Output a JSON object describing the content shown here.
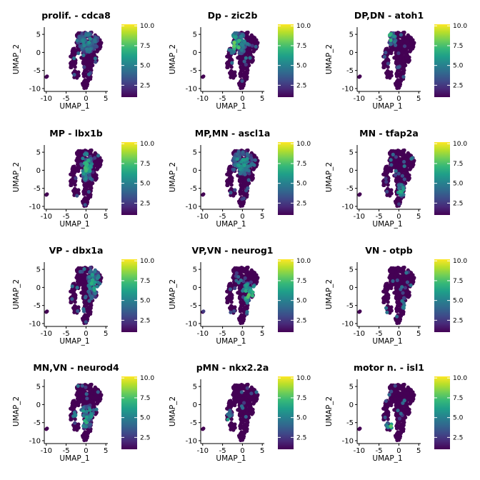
{
  "chart_data": [
    {
      "type": "scatter",
      "title": "prolif. - cdca8",
      "xlabel": "UMAP_1",
      "ylabel": "UMAP_2",
      "xlim": [
        -10.5,
        5.5
      ],
      "ylim": [
        -10.8,
        7
      ],
      "x_ticks": [
        "-10",
        "-5",
        "0",
        "5"
      ],
      "y_ticks": [
        "5",
        "0",
        "-5",
        "-10"
      ],
      "colorbar_ticks": [
        "10.0",
        "7.5",
        "5.0",
        "2.5"
      ],
      "colorbar_range": [
        1,
        10.2
      ],
      "expression_region": {
        "center": [
          0.5,
          3
        ],
        "spread": [
          2.6,
          3.2
        ],
        "level": 0.55
      }
    },
    {
      "type": "scatter",
      "title": "Dp - zic2b",
      "xlabel": "UMAP_1",
      "ylabel": "UMAP_2",
      "xlim": [
        -10.5,
        5.5
      ],
      "ylim": [
        -10.8,
        7
      ],
      "x_ticks": [
        "-10",
        "-5",
        "0",
        "5"
      ],
      "y_ticks": [
        "5",
        "0",
        "-5",
        "-10"
      ],
      "colorbar_ticks": [
        "10.0",
        "7.5",
        "5.0",
        "2.5"
      ],
      "colorbar_range": [
        1,
        10.2
      ],
      "expression_region": {
        "center": [
          -1.5,
          2.5
        ],
        "spread": [
          2.4,
          3.4
        ],
        "level": 0.8
      }
    },
    {
      "type": "scatter",
      "title": "DP,DN - atoh1",
      "xlabel": "UMAP_1",
      "ylabel": "UMAP_2",
      "xlim": [
        -10.5,
        5.5
      ],
      "ylim": [
        -10.8,
        7
      ],
      "x_ticks": [
        "-10",
        "-5",
        "0",
        "5"
      ],
      "y_ticks": [
        "5",
        "0",
        "-5",
        "-10"
      ],
      "colorbar_ticks": [
        "10.0",
        "7.5",
        "5.0",
        "2.5"
      ],
      "colorbar_range": [
        1,
        10.2
      ],
      "expression_region": {
        "center": [
          -2.5,
          4
        ],
        "spread": [
          1.8,
          2.2
        ],
        "level": 0.8
      }
    },
    {
      "type": "scatter",
      "title": "MP - lbx1b",
      "xlabel": "UMAP_1",
      "ylabel": "UMAP_2",
      "xlim": [
        -10.5,
        5.5
      ],
      "ylim": [
        -10.8,
        7
      ],
      "x_ticks": [
        "-10",
        "-5",
        "0",
        "5"
      ],
      "y_ticks": [
        "5",
        "0",
        "-5",
        "-10"
      ],
      "colorbar_ticks": [
        "10.0",
        "7.5",
        "5.0",
        "2.5"
      ],
      "colorbar_range": [
        1,
        10.2
      ],
      "expression_region": {
        "center": [
          0.3,
          1
        ],
        "spread": [
          1.6,
          4
        ],
        "level": 0.75
      }
    },
    {
      "type": "scatter",
      "title": "MP,MN - ascl1a",
      "xlabel": "UMAP_1",
      "ylabel": "UMAP_2",
      "xlim": [
        -10.5,
        5.5
      ],
      "ylim": [
        -10.8,
        7
      ],
      "x_ticks": [
        "-10",
        "-5",
        "0",
        "5"
      ],
      "y_ticks": [
        "5",
        "0",
        "-5",
        "-10"
      ],
      "colorbar_ticks": [
        "10.0",
        "7.5",
        "5.0",
        "2.5"
      ],
      "colorbar_range": [
        1,
        10.2
      ],
      "expression_region": {
        "center": [
          0,
          2
        ],
        "spread": [
          2.8,
          3.5
        ],
        "level": 0.6
      }
    },
    {
      "type": "scatter",
      "title": "MN - tfap2a",
      "xlabel": "UMAP_1",
      "ylabel": "UMAP_2",
      "xlim": [
        -10.5,
        5.5
      ],
      "ylim": [
        -10.8,
        7
      ],
      "x_ticks": [
        "-10",
        "-5",
        "0",
        "5"
      ],
      "y_ticks": [
        "5",
        "0",
        "-5",
        "-10"
      ],
      "colorbar_ticks": [
        "10.0",
        "7.5",
        "5.0",
        "2.5"
      ],
      "colorbar_range": [
        1,
        10.2
      ],
      "expression_region": {
        "center": [
          0.5,
          -5.5
        ],
        "spread": [
          1.2,
          1.8
        ],
        "level": 0.7
      }
    },
    {
      "type": "scatter",
      "title": "VP - dbx1a",
      "xlabel": "UMAP_1",
      "ylabel": "UMAP_2",
      "xlim": [
        -10.5,
        5.5
      ],
      "ylim": [
        -10.8,
        7
      ],
      "x_ticks": [
        "-10",
        "-5",
        "0",
        "5"
      ],
      "y_ticks": [
        "5",
        "0",
        "-5",
        "-10"
      ],
      "colorbar_ticks": [
        "10.0",
        "7.5",
        "5.0",
        "2.5"
      ],
      "colorbar_range": [
        1,
        10.2
      ],
      "expression_region": {
        "center": [
          2,
          1
        ],
        "spread": [
          1.6,
          4.5
        ],
        "level": 0.7
      }
    },
    {
      "type": "scatter",
      "title": "VP,VN - neurog1",
      "xlabel": "UMAP_1",
      "ylabel": "UMAP_2",
      "xlim": [
        -10.5,
        5.5
      ],
      "ylim": [
        -10.8,
        7
      ],
      "x_ticks": [
        "-10",
        "-5",
        "0",
        "5"
      ],
      "y_ticks": [
        "5",
        "0",
        "-5",
        "-10"
      ],
      "colorbar_ticks": [
        "10.0",
        "7.5",
        "5.0",
        "2.5"
      ],
      "colorbar_range": [
        1,
        10.2
      ],
      "expression_region": {
        "center": [
          1.8,
          -1.5
        ],
        "spread": [
          1.8,
          3
        ],
        "level": 0.85
      }
    },
    {
      "type": "scatter",
      "title": "VN - otpb",
      "xlabel": "UMAP_1",
      "ylabel": "UMAP_2",
      "xlim": [
        -10.5,
        5.5
      ],
      "ylim": [
        -10.8,
        7
      ],
      "x_ticks": [
        "-10",
        "-5",
        "0",
        "5"
      ],
      "y_ticks": [
        "5",
        "0",
        "-5",
        "-10"
      ],
      "colorbar_ticks": [
        "10.0",
        "7.5",
        "5.0",
        "2.5"
      ],
      "colorbar_range": [
        1,
        10.2
      ],
      "expression_region": {
        "center": [
          2,
          -4.5
        ],
        "spread": [
          1.4,
          1.8
        ],
        "level": 0.9
      }
    },
    {
      "type": "scatter",
      "title": "MN,VN - neurod4",
      "xlabel": "UMAP_1",
      "ylabel": "UMAP_2",
      "xlim": [
        -10.5,
        5.5
      ],
      "ylim": [
        -10.8,
        7
      ],
      "x_ticks": [
        "-10",
        "-5",
        "0",
        "5"
      ],
      "y_ticks": [
        "5",
        "0",
        "-5",
        "-10"
      ],
      "colorbar_ticks": [
        "10.0",
        "7.5",
        "5.0",
        "2.5"
      ],
      "colorbar_range": [
        1,
        10.2
      ],
      "expression_region": {
        "center": [
          -0.5,
          -3.5
        ],
        "spread": [
          2.8,
          3.2
        ],
        "level": 0.75
      }
    },
    {
      "type": "scatter",
      "title": "pMN - nkx2.2a",
      "xlabel": "UMAP_1",
      "ylabel": "UMAP_2",
      "xlim": [
        -10.5,
        5.5
      ],
      "ylim": [
        -10.8,
        7
      ],
      "x_ticks": [
        "-10",
        "-5",
        "0",
        "5"
      ],
      "y_ticks": [
        "5",
        "0",
        "-5",
        "-10"
      ],
      "colorbar_ticks": [
        "10.0",
        "7.5",
        "5.0",
        "2.5"
      ],
      "colorbar_range": [
        1,
        10.2
      ],
      "expression_region": {
        "center": [
          -3.5,
          -3.5
        ],
        "spread": [
          1.0,
          2
        ],
        "level": 0.75
      }
    },
    {
      "type": "scatter",
      "title": "motor n. - isl1",
      "xlabel": "UMAP_1",
      "ylabel": "UMAP_2",
      "xlim": [
        -10.5,
        5.5
      ],
      "ylim": [
        -10.8,
        7
      ],
      "x_ticks": [
        "-10",
        "-5",
        "0",
        "5"
      ],
      "y_ticks": [
        "5",
        "0",
        "-5",
        "-10"
      ],
      "colorbar_ticks": [
        "10.0",
        "7.5",
        "5.0",
        "2.5"
      ],
      "colorbar_range": [
        1,
        10.2
      ],
      "expression_region": {
        "center": [
          -2,
          -5.5
        ],
        "spread": [
          1.2,
          1.6
        ],
        "level": 0.8
      }
    }
  ],
  "colors": {
    "viridis": [
      "#440154",
      "#482878",
      "#3e4a89",
      "#31688e",
      "#26828e",
      "#1f9e89",
      "#35b779",
      "#6ece58",
      "#b5de2b",
      "#fde725"
    ],
    "background": "#ffffff",
    "axis": "#000000"
  }
}
